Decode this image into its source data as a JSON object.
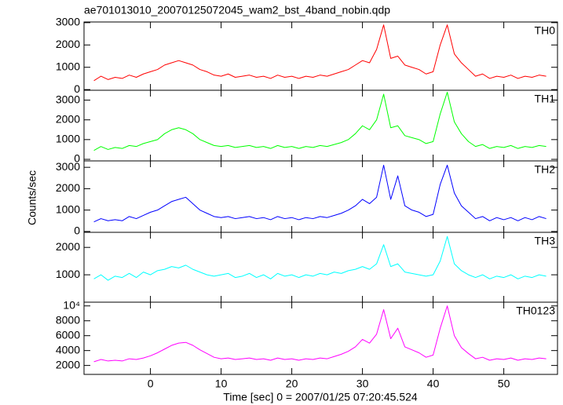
{
  "chart_data": [
    {
      "type": "line",
      "title": "ae701013010_20070125072045_wam2_bst_4band_nobin.qdp",
      "x": [
        -8,
        -7,
        -6,
        -5,
        -4,
        -3,
        -2,
        -1,
        0,
        1,
        2,
        3,
        4,
        5,
        6,
        7,
        8,
        9,
        10,
        11,
        12,
        13,
        14,
        15,
        16,
        17,
        18,
        19,
        20,
        21,
        22,
        23,
        24,
        25,
        26,
        27,
        28,
        29,
        30,
        31,
        32,
        33,
        34,
        35,
        36,
        37,
        38,
        39,
        40,
        41,
        42,
        43,
        44,
        45,
        46,
        47,
        48,
        49,
        50,
        51,
        52,
        53,
        54,
        55,
        56
      ],
      "series": [
        {
          "name": "TH0",
          "color": "#ff0000",
          "values": [
            400,
            600,
            450,
            550,
            500,
            650,
            550,
            700,
            800,
            900,
            1100,
            1200,
            1300,
            1200,
            1100,
            900,
            800,
            650,
            600,
            700,
            550,
            600,
            650,
            550,
            600,
            500,
            650,
            550,
            600,
            500,
            600,
            550,
            650,
            600,
            700,
            800,
            900,
            1100,
            1300,
            1200,
            1800,
            2900,
            1400,
            1500,
            1100,
            1000,
            900,
            700,
            800,
            2000,
            2900,
            1600,
            1200,
            900,
            600,
            700,
            500,
            600,
            550,
            650,
            500,
            600,
            550,
            650,
            600
          ]
        }
      ],
      "ylim": [
        -30,
        3030
      ],
      "yticks": [
        0,
        1000,
        2000,
        3000
      ]
    },
    {
      "type": "line",
      "x": [
        -8,
        -7,
        -6,
        -5,
        -4,
        -3,
        -2,
        -1,
        0,
        1,
        2,
        3,
        4,
        5,
        6,
        7,
        8,
        9,
        10,
        11,
        12,
        13,
        14,
        15,
        16,
        17,
        18,
        19,
        20,
        21,
        22,
        23,
        24,
        25,
        26,
        27,
        28,
        29,
        30,
        31,
        32,
        33,
        34,
        35,
        36,
        37,
        38,
        39,
        40,
        41,
        42,
        43,
        44,
        45,
        46,
        47,
        48,
        49,
        50,
        51,
        52,
        53,
        54,
        55,
        56
      ],
      "series": [
        {
          "name": "TH1",
          "color": "#00ff00",
          "values": [
            450,
            650,
            500,
            600,
            550,
            700,
            650,
            800,
            900,
            1000,
            1300,
            1500,
            1600,
            1500,
            1300,
            1000,
            850,
            700,
            650,
            700,
            600,
            650,
            700,
            600,
            650,
            550,
            700,
            600,
            650,
            550,
            650,
            600,
            700,
            650,
            750,
            850,
            1000,
            1300,
            1700,
            1500,
            2000,
            3300,
            1600,
            1700,
            1200,
            1100,
            1000,
            800,
            900,
            2300,
            3400,
            1900,
            1300,
            900,
            650,
            750,
            550,
            650,
            600,
            700,
            550,
            650,
            600,
            700,
            650
          ]
        }
      ],
      "ylim": [
        -80,
        3500
      ],
      "yticks": [
        0,
        1000,
        2000,
        3000
      ]
    },
    {
      "type": "line",
      "y_label": "Counts/sec",
      "x": [
        -8,
        -7,
        -6,
        -5,
        -4,
        -3,
        -2,
        -1,
        0,
        1,
        2,
        3,
        4,
        5,
        6,
        7,
        8,
        9,
        10,
        11,
        12,
        13,
        14,
        15,
        16,
        17,
        18,
        19,
        20,
        21,
        22,
        23,
        24,
        25,
        26,
        27,
        28,
        29,
        30,
        31,
        32,
        33,
        34,
        35,
        36,
        37,
        38,
        39,
        40,
        41,
        42,
        43,
        44,
        45,
        46,
        47,
        48,
        49,
        50,
        51,
        52,
        53,
        54,
        55,
        56
      ],
      "series": [
        {
          "name": "TH2",
          "color": "#0000ff",
          "values": [
            450,
            600,
            500,
            550,
            500,
            700,
            600,
            750,
            900,
            1000,
            1200,
            1400,
            1500,
            1600,
            1300,
            1000,
            850,
            700,
            650,
            700,
            600,
            650,
            700,
            600,
            650,
            550,
            700,
            600,
            650,
            550,
            650,
            600,
            700,
            650,
            750,
            850,
            1000,
            1200,
            1500,
            1300,
            1600,
            3100,
            1500,
            2600,
            1200,
            1000,
            900,
            700,
            800,
            2200,
            3100,
            1800,
            1200,
            900,
            600,
            700,
            500,
            650,
            550,
            650,
            500,
            650,
            550,
            700,
            600
          ]
        }
      ],
      "ylim": [
        -40,
        3300
      ],
      "yticks": [
        0,
        1000,
        2000,
        3000
      ]
    },
    {
      "type": "line",
      "x": [
        -8,
        -7,
        -6,
        -5,
        -4,
        -3,
        -2,
        -1,
        0,
        1,
        2,
        3,
        4,
        5,
        6,
        7,
        8,
        9,
        10,
        11,
        12,
        13,
        14,
        15,
        16,
        17,
        18,
        19,
        20,
        21,
        22,
        23,
        24,
        25,
        26,
        27,
        28,
        29,
        30,
        31,
        32,
        33,
        34,
        35,
        36,
        37,
        38,
        39,
        40,
        41,
        42,
        43,
        44,
        45,
        46,
        47,
        48,
        49,
        50,
        51,
        52,
        53,
        54,
        55,
        56
      ],
      "series": [
        {
          "name": "TH3",
          "color": "#00ffff",
          "values": [
            850,
            1000,
            800,
            950,
            900,
            1050,
            900,
            1100,
            1000,
            1150,
            1200,
            1300,
            1250,
            1350,
            1200,
            1100,
            1000,
            950,
            1000,
            1050,
            900,
            950,
            1050,
            900,
            1000,
            850,
            1050,
            950,
            1000,
            900,
            1000,
            950,
            1050,
            1000,
            1100,
            1050,
            1150,
            1200,
            1300,
            1200,
            1400,
            2100,
            1300,
            1400,
            1100,
            1050,
            1000,
            950,
            1000,
            1500,
            2400,
            1400,
            1150,
            1000,
            900,
            1000,
            850,
            950,
            900,
            1000,
            850,
            950,
            900,
            1000,
            950
          ]
        }
      ],
      "ylim": [
        0,
        2550
      ],
      "yticks": [
        1000,
        2000
      ]
    },
    {
      "type": "line",
      "x_label": "Time [sec] 0 = 2007/01/25 07:20:45.524",
      "x": [
        -8,
        -7,
        -6,
        -5,
        -4,
        -3,
        -2,
        -1,
        0,
        1,
        2,
        3,
        4,
        5,
        6,
        7,
        8,
        9,
        10,
        11,
        12,
        13,
        14,
        15,
        16,
        17,
        18,
        19,
        20,
        21,
        22,
        23,
        24,
        25,
        26,
        27,
        28,
        29,
        30,
        31,
        32,
        33,
        34,
        35,
        36,
        37,
        38,
        39,
        40,
        41,
        42,
        43,
        44,
        45,
        46,
        47,
        48,
        49,
        50,
        51,
        52,
        53,
        54,
        55,
        56
      ],
      "series": [
        {
          "name": "TH0123",
          "color": "#ff00ff",
          "values": [
            2500,
            2800,
            2600,
            2700,
            2600,
            2900,
            2800,
            3000,
            3300,
            3700,
            4200,
            4700,
            5000,
            5100,
            4700,
            4100,
            3600,
            3100,
            2900,
            3000,
            2800,
            2900,
            3000,
            2800,
            2900,
            2700,
            3000,
            2800,
            2900,
            2700,
            2900,
            2800,
            3000,
            2900,
            3200,
            3500,
            3900,
            4500,
            5500,
            5000,
            6200,
            9500,
            5600,
            7000,
            4500,
            4100,
            3700,
            3100,
            3400,
            7000,
            10000,
            6000,
            4400,
            3600,
            2900,
            3100,
            2700,
            2900,
            2800,
            3000,
            2700,
            2900,
            2800,
            3000,
            2900
          ]
        }
      ],
      "ylim": [
        800,
        10500
      ],
      "yticks": [
        2000,
        4000,
        6000,
        8000,
        {
          "value": 10000,
          "label": "10⁴"
        }
      ],
      "xlim": [
        -9.4,
        57.6
      ],
      "xticks": [
        0,
        10,
        20,
        30,
        40,
        50
      ]
    }
  ]
}
